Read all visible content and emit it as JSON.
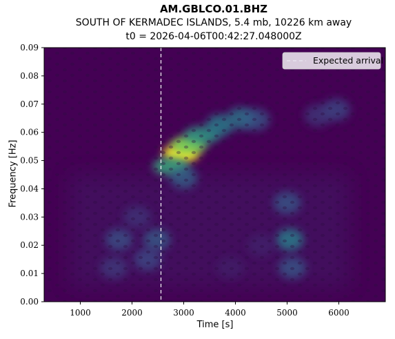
{
  "title": "AM.GBLCO.01.BHZ",
  "subtitle": "SOUTH OF KERMADEC ISLANDS, 5.4 mb, 10226 km away",
  "t0_line": "t0 = 2026-04-06T00:42:27.048000Z",
  "chart_data": {
    "type": "heatmap",
    "title": "AM.GBLCO.01.BHZ",
    "xlabel": "Time [s]",
    "ylabel": "Frequency [Hz]",
    "xlim": [
      300,
      6900
    ],
    "ylim": [
      0.0,
      0.09
    ],
    "x_ticks": [
      1000,
      2000,
      3000,
      4000,
      5000,
      6000
    ],
    "x_tick_labels": [
      "1000",
      "2000",
      "3000",
      "4000",
      "5000",
      "6000"
    ],
    "y_ticks": [
      0.0,
      0.01,
      0.02,
      0.03,
      0.04,
      0.05,
      0.06,
      0.07,
      0.08,
      0.09
    ],
    "y_tick_labels": [
      "0.00",
      "0.01",
      "0.02",
      "0.03",
      "0.04",
      "0.05",
      "0.06",
      "0.07",
      "0.08",
      "0.09"
    ],
    "colormap": "viridis",
    "background_color": "#440154",
    "expected_arrival_x": 2560,
    "legend": {
      "entries": [
        "Expected arrival"
      ],
      "placement": "top-right"
    },
    "energy_features": [
      {
        "x": 2950,
        "y": 0.0525,
        "intensity": 1.0
      },
      {
        "x": 3100,
        "y": 0.0555,
        "intensity": 0.8
      },
      {
        "x": 2750,
        "y": 0.048,
        "intensity": 0.6
      },
      {
        "x": 3350,
        "y": 0.059,
        "intensity": 0.55
      },
      {
        "x": 3700,
        "y": 0.0625,
        "intensity": 0.45
      },
      {
        "x": 4100,
        "y": 0.065,
        "intensity": 0.42
      },
      {
        "x": 4400,
        "y": 0.0645,
        "intensity": 0.3
      },
      {
        "x": 3000,
        "y": 0.044,
        "intensity": 0.35
      },
      {
        "x": 5050,
        "y": 0.022,
        "intensity": 0.45
      },
      {
        "x": 5000,
        "y": 0.035,
        "intensity": 0.3
      },
      {
        "x": 5100,
        "y": 0.012,
        "intensity": 0.3
      },
      {
        "x": 2480,
        "y": 0.022,
        "intensity": 0.32
      },
      {
        "x": 2300,
        "y": 0.015,
        "intensity": 0.25
      },
      {
        "x": 1750,
        "y": 0.022,
        "intensity": 0.28
      },
      {
        "x": 1650,
        "y": 0.012,
        "intensity": 0.2
      },
      {
        "x": 2100,
        "y": 0.03,
        "intensity": 0.18
      },
      {
        "x": 5950,
        "y": 0.068,
        "intensity": 0.25
      },
      {
        "x": 5600,
        "y": 0.066,
        "intensity": 0.2
      },
      {
        "x": 4500,
        "y": 0.02,
        "intensity": 0.12
      },
      {
        "x": 3900,
        "y": 0.012,
        "intensity": 0.1
      }
    ]
  }
}
